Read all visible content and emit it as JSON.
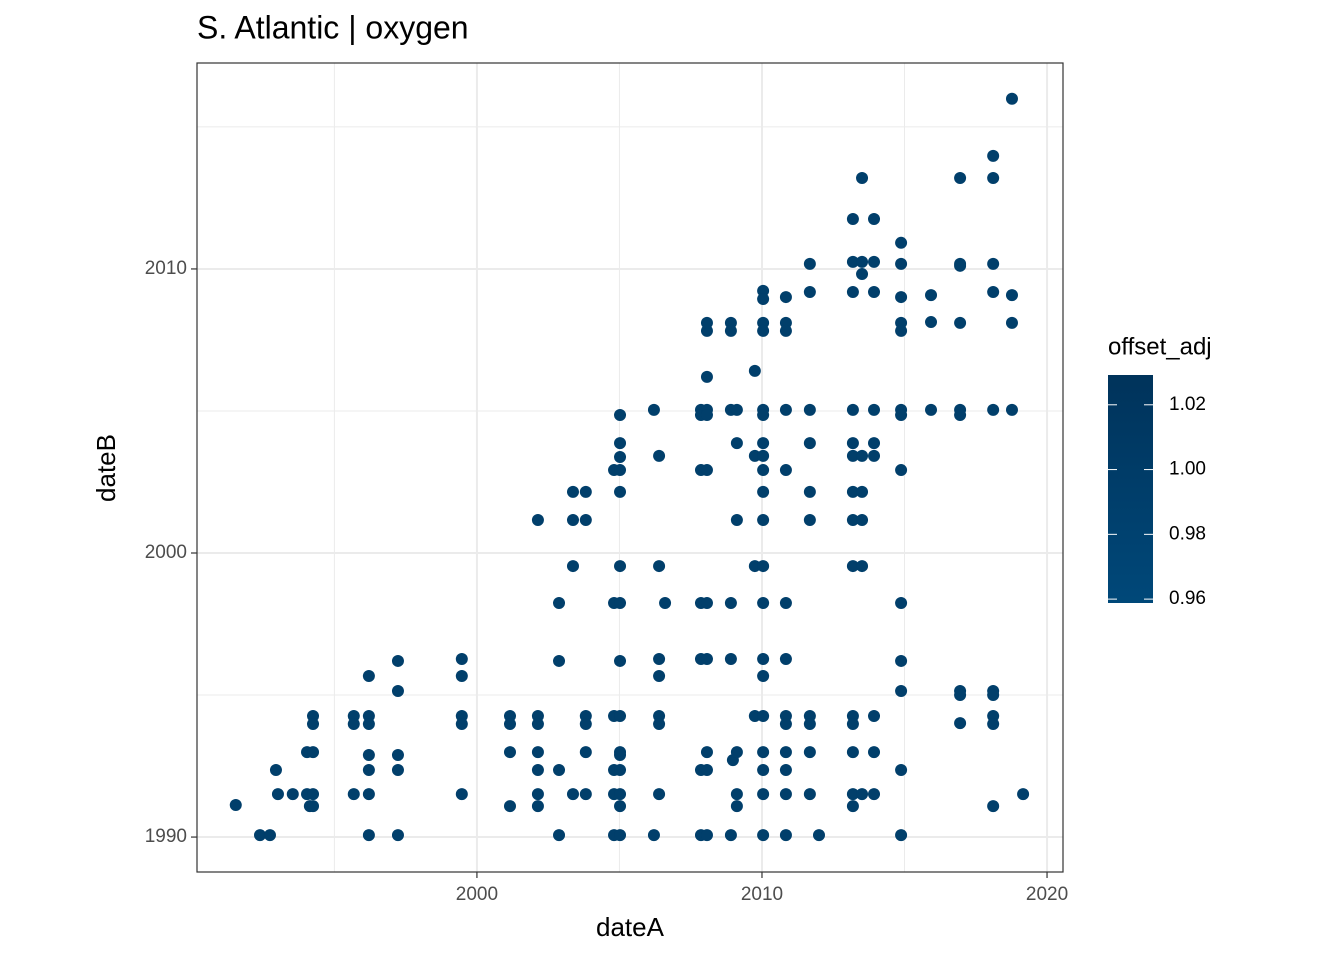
{
  "chart_data": {
    "type": "scatter",
    "title": "S. Atlantic | oxygen",
    "x_label": "dateA",
    "y_label": "dateB",
    "color": "#013f6b",
    "xlim": [
      1990.18,
      2020.56
    ],
    "ylim": [
      1988.77,
      2017.25
    ],
    "xticks": [
      2000,
      2010,
      2020
    ],
    "yticks": [
      1990,
      2000,
      2010
    ],
    "xminor": [
      1995,
      2005,
      2015
    ],
    "yminor": [
      1995,
      2005,
      2015
    ],
    "grid": true,
    "legend": {
      "title": "offset_adj",
      "lim": [
        0.9588,
        1.0292
      ],
      "colors": [
        "#004879",
        "#00335b"
      ],
      "ticks": [
        0.96,
        0.98,
        {
          "value": 1.0,
          "label": "1.00"
        },
        1.02
      ]
    },
    "x": [
      1991.54,
      1992.39,
      1992.74,
      1992.95,
      1993.02,
      1993.54,
      1994.04,
      1994.04,
      1994.14,
      1994.25,
      1994.25,
      1994.25,
      1994.25,
      1994.25,
      1995.68,
      1995.68,
      1995.68,
      1996.21,
      1996.21,
      1996.21,
      1996.21,
      1996.21,
      1996.21,
      1996.21,
      1997.23,
      1997.23,
      1997.23,
      1997.23,
      1997.23,
      1999.47,
      1999.47,
      1999.47,
      1999.47,
      1999.47,
      2001.16,
      2001.16,
      2001.16,
      2001.16,
      2002.14,
      2002.14,
      2002.14,
      2002.14,
      2002.14,
      2002.14,
      2002.14,
      2002.88,
      2002.88,
      2002.88,
      2002.88,
      2003.37,
      2003.37,
      2003.37,
      2003.37,
      2003.82,
      2003.82,
      2003.82,
      2003.82,
      2003.82,
      2003.82,
      2004.81,
      2004.81,
      2004.81,
      2004.81,
      2004.81,
      2004.81,
      2005.02,
      2005.02,
      2005.02,
      2005.02,
      2005.02,
      2005.02,
      2005.02,
      2005.02,
      2005.02,
      2005.02,
      2005.02,
      2005.02,
      2005.02,
      2005.02,
      2005.02,
      2006.21,
      2006.21,
      2006.39,
      2006.39,
      2006.39,
      2006.39,
      2006.39,
      2006.39,
      2006.39,
      2006.6,
      2007.86,
      2007.86,
      2007.86,
      2007.86,
      2007.86,
      2007.86,
      2007.86,
      2008.07,
      2008.07,
      2008.07,
      2008.07,
      2008.07,
      2008.07,
      2008.07,
      2008.07,
      2008.07,
      2008.07,
      2008.07,
      2008.91,
      2008.91,
      2008.91,
      2008.91,
      2008.91,
      2008.91,
      2008.98,
      2009.12,
      2009.12,
      2009.12,
      2009.12,
      2009.12,
      2009.12,
      2009.75,
      2009.75,
      2009.75,
      2009.75,
      2010.04,
      2010.04,
      2010.04,
      2010.04,
      2010.04,
      2010.04,
      2010.04,
      2010.04,
      2010.04,
      2010.04,
      2010.04,
      2010.04,
      2010.04,
      2010.04,
      2010.04,
      2010.04,
      2010.04,
      2010.04,
      2010.04,
      2010.04,
      2010.84,
      2010.84,
      2010.84,
      2010.84,
      2010.84,
      2010.84,
      2010.84,
      2010.84,
      2010.84,
      2010.84,
      2010.84,
      2010.84,
      2010.84,
      2011.68,
      2011.68,
      2011.68,
      2011.68,
      2011.68,
      2011.68,
      2011.68,
      2011.68,
      2011.68,
      2011.68,
      2012.0,
      2013.19,
      2013.19,
      2013.19,
      2013.19,
      2013.19,
      2013.19,
      2013.19,
      2013.19,
      2013.19,
      2013.19,
      2013.19,
      2013.19,
      2013.19,
      2013.19,
      2013.51,
      2013.51,
      2013.51,
      2013.51,
      2013.51,
      2013.51,
      2013.51,
      2013.51,
      2013.93,
      2013.93,
      2013.93,
      2013.93,
      2013.93,
      2013.93,
      2013.93,
      2013.93,
      2013.93,
      2014.88,
      2014.88,
      2014.88,
      2014.88,
      2014.88,
      2014.88,
      2014.88,
      2014.88,
      2014.88,
      2014.88,
      2014.88,
      2014.88,
      2014.88,
      2015.93,
      2015.93,
      2015.93,
      2016.95,
      2016.95,
      2016.95,
      2016.95,
      2016.95,
      2016.95,
      2016.95,
      2016.95,
      2016.95,
      2018.11,
      2018.11,
      2018.11,
      2018.11,
      2018.11,
      2018.11,
      2018.11,
      2018.11,
      2018.11,
      2018.11,
      2018.77,
      2018.77,
      2018.77,
      2018.77,
      2019.16
    ],
    "values": [
      1991.13,
      1990.07,
      1990.07,
      1992.36,
      1991.51,
      1991.51,
      1992.99,
      1991.51,
      1991.09,
      1994.26,
      1993.98,
      1992.99,
      1991.51,
      1991.09,
      1994.26,
      1993.98,
      1991.51,
      1995.67,
      1994.26,
      1993.98,
      1992.89,
      1992.36,
      1991.51,
      1990.07,
      1996.2,
      1995.14,
      1992.89,
      1992.36,
      1990.07,
      1996.27,
      1995.67,
      1994.26,
      1993.98,
      1991.51,
      1994.26,
      1993.98,
      1992.99,
      1991.09,
      2001.16,
      1994.26,
      1993.98,
      1992.99,
      1992.36,
      1991.51,
      1991.09,
      1998.24,
      1996.2,
      1992.36,
      1990.07,
      2002.15,
      2001.16,
      1999.54,
      1991.51,
      2002.15,
      2001.16,
      1994.26,
      1993.98,
      1992.99,
      1991.51,
      2002.92,
      1998.24,
      1994.26,
      1992.36,
      1991.51,
      1990.07,
      2004.86,
      2003.87,
      2003.38,
      2002.92,
      2002.15,
      1999.54,
      1998.24,
      1996.2,
      1994.26,
      1992.99,
      1992.89,
      1992.36,
      1991.51,
      1991.09,
      1990.07,
      2005.04,
      1990.07,
      2003.42,
      1999.54,
      1996.27,
      1995.67,
      1994.26,
      1993.98,
      1991.51,
      1998.24,
      2005.04,
      2004.86,
      2002.92,
      1998.24,
      1996.27,
      1992.36,
      1990.07,
      2007.82,
      2008.1,
      2006.2,
      2005.04,
      2004.86,
      2002.92,
      1998.24,
      1996.27,
      1992.99,
      1992.36,
      1990.07,
      2008.1,
      2007.82,
      2005.04,
      1998.24,
      1996.27,
      1990.07,
      1992.71,
      2005.04,
      2003.87,
      2001.16,
      1992.99,
      1991.51,
      1991.09,
      2006.41,
      2003.42,
      1999.54,
      1994.26,
      2009.23,
      2008.94,
      2008.1,
      2007.82,
      2005.04,
      2004.86,
      2003.87,
      2003.42,
      2002.92,
      2002.15,
      2001.16,
      1999.54,
      1998.24,
      1996.27,
      1995.67,
      1994.26,
      1992.99,
      1992.36,
      1991.51,
      1990.07,
      2009.01,
      2008.1,
      2007.82,
      2005.04,
      2002.92,
      1998.24,
      1996.27,
      1994.26,
      1993.98,
      1992.99,
      1992.36,
      1991.51,
      1990.07,
      2010.18,
      2009.19,
      2005.04,
      2003.87,
      2002.15,
      2001.16,
      1994.26,
      1993.98,
      1992.99,
      1991.51,
      1990.07,
      2011.76,
      2010.25,
      2009.19,
      2005.04,
      2003.87,
      2003.42,
      2002.15,
      2001.16,
      1999.54,
      1994.26,
      1993.98,
      1992.99,
      1991.51,
      1991.09,
      2013.2,
      2010.25,
      2009.82,
      2003.42,
      2002.15,
      2001.16,
      1999.54,
      1991.51,
      2011.76,
      2010.25,
      2009.19,
      2005.04,
      2003.87,
      2003.42,
      1994.26,
      1992.99,
      1991.51,
      2010.92,
      2010.18,
      2009.01,
      2008.1,
      2007.82,
      2005.04,
      2004.86,
      2002.92,
      1998.24,
      1996.2,
      1995.14,
      1992.36,
      1990.07,
      2009.08,
      2008.13,
      2005.04,
      2013.2,
      2010.18,
      2010.11,
      2008.1,
      2005.04,
      2004.86,
      1995.14,
      1995.0,
      1994.01,
      2013.98,
      2013.2,
      2010.18,
      2009.19,
      2005.04,
      1995.14,
      1995.0,
      1994.26,
      1993.98,
      1991.09,
      2015.99,
      2009.08,
      2008.1,
      2005.04,
      1991.51
    ]
  }
}
